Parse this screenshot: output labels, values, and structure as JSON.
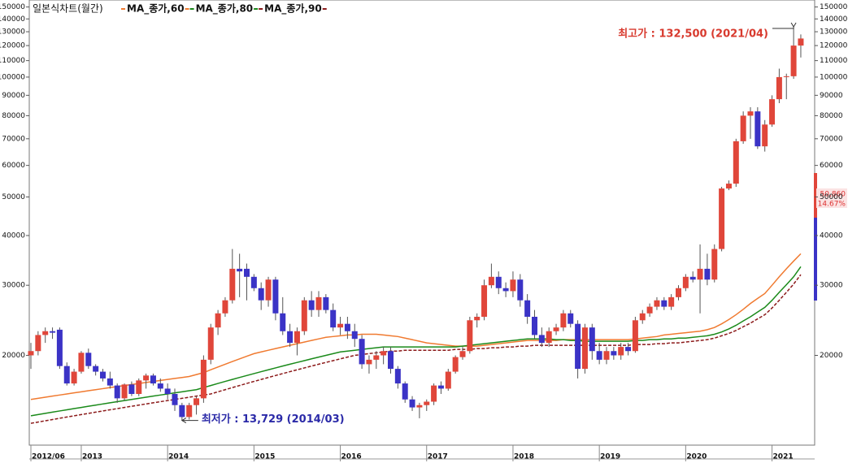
{
  "chart_data": {
    "type": "candlestick",
    "title": "일본식차트(월간)",
    "log_scale": true,
    "grid": false,
    "up_color": "#e0463a",
    "down_color": "#3b33c6",
    "ylim": [
      11900,
      154000
    ],
    "yticks": [
      20000,
      30000,
      40000,
      50000,
      60000,
      70000,
      80000,
      90000,
      100000,
      110000,
      120000,
      130000,
      140000,
      150000
    ],
    "categories": [
      "2012/06",
      null,
      null,
      null,
      null,
      null,
      null,
      "2013",
      null,
      null,
      null,
      null,
      null,
      null,
      null,
      null,
      null,
      null,
      null,
      "2014",
      null,
      null,
      null,
      null,
      null,
      null,
      null,
      null,
      null,
      null,
      null,
      "2015",
      null,
      null,
      null,
      null,
      null,
      null,
      null,
      null,
      null,
      null,
      null,
      "2016",
      null,
      null,
      null,
      null,
      null,
      null,
      null,
      null,
      null,
      null,
      null,
      "2017",
      null,
      null,
      null,
      null,
      null,
      null,
      null,
      null,
      null,
      null,
      null,
      "2018",
      null,
      null,
      null,
      null,
      null,
      null,
      null,
      null,
      null,
      null,
      null,
      "2019",
      null,
      null,
      null,
      null,
      null,
      null,
      null,
      null,
      null,
      null,
      null,
      "2020",
      null,
      null,
      null,
      null,
      null,
      null,
      null,
      null,
      null,
      null,
      null,
      "2021",
      null,
      null,
      null,
      null
    ],
    "ohlc": [
      [
        20000,
        21500,
        18500,
        20500
      ],
      [
        20500,
        23000,
        20000,
        22500
      ],
      [
        22500,
        23500,
        21500,
        23000
      ],
      [
        23000,
        23500,
        22000,
        22800
      ],
      [
        23200,
        23500,
        18500,
        18800
      ],
      [
        18800,
        19200,
        16800,
        17000
      ],
      [
        17000,
        18500,
        16800,
        18200
      ],
      [
        18200,
        20500,
        18000,
        20300
      ],
      [
        20300,
        20800,
        18500,
        18800
      ],
      [
        18800,
        19000,
        17800,
        18200
      ],
      [
        18200,
        18500,
        17200,
        17500
      ],
      [
        17500,
        18200,
        16500,
        16800
      ],
      [
        16800,
        17000,
        15200,
        15600
      ],
      [
        15600,
        17000,
        15400,
        16900
      ],
      [
        16900,
        17200,
        15800,
        16000
      ],
      [
        16000,
        17500,
        15800,
        17300
      ],
      [
        17300,
        18000,
        16500,
        17800
      ],
      [
        17800,
        18000,
        16800,
        17000
      ],
      [
        17000,
        17500,
        16200,
        16500
      ],
      [
        16500,
        17000,
        15500,
        16000
      ],
      [
        16000,
        16500,
        14500,
        15000
      ],
      [
        15000,
        15200,
        13729,
        14000
      ],
      [
        14000,
        15200,
        13800,
        15000
      ],
      [
        15000,
        15800,
        14200,
        15600
      ],
      [
        15600,
        20000,
        15200,
        19500
      ],
      [
        19500,
        24000,
        19000,
        23500
      ],
      [
        23500,
        26000,
        22500,
        25500
      ],
      [
        25500,
        28000,
        25000,
        27500
      ],
      [
        27500,
        37000,
        27000,
        33000
      ],
      [
        33000,
        36000,
        28000,
        32500
      ],
      [
        33000,
        34000,
        27500,
        31500
      ],
      [
        31500,
        32000,
        29000,
        29500
      ],
      [
        29500,
        30500,
        26000,
        27500
      ],
      [
        27500,
        31500,
        26500,
        31000
      ],
      [
        31000,
        31500,
        24500,
        25500
      ],
      [
        25500,
        28000,
        22500,
        23000
      ],
      [
        23000,
        24000,
        21000,
        21500
      ],
      [
        21500,
        23500,
        20000,
        23000
      ],
      [
        23000,
        28000,
        22500,
        27500
      ],
      [
        27500,
        29000,
        25000,
        26000
      ],
      [
        26000,
        29000,
        25000,
        28000
      ],
      [
        28000,
        28500,
        25500,
        26000
      ],
      [
        26000,
        27000,
        23000,
        23500
      ],
      [
        23500,
        25000,
        22500,
        24000
      ],
      [
        24000,
        25000,
        22000,
        23000
      ],
      [
        23000,
        24000,
        21000,
        22000
      ],
      [
        22000,
        22500,
        18500,
        19000
      ],
      [
        19000,
        20000,
        18000,
        19500
      ],
      [
        19500,
        20500,
        18500,
        20000
      ],
      [
        20000,
        21000,
        19000,
        20500
      ],
      [
        20500,
        21000,
        18000,
        18500
      ],
      [
        18500,
        18800,
        16500,
        17000
      ],
      [
        17000,
        17200,
        15200,
        15500
      ],
      [
        15500,
        15800,
        14500,
        14800
      ],
      [
        14800,
        15200,
        13900,
        15000
      ],
      [
        15000,
        15500,
        14500,
        15300
      ],
      [
        15300,
        17000,
        15000,
        16800
      ],
      [
        16800,
        17200,
        16000,
        16500
      ],
      [
        16500,
        18500,
        16300,
        18200
      ],
      [
        18200,
        20000,
        18000,
        19800
      ],
      [
        19800,
        21000,
        19500,
        20500
      ],
      [
        20500,
        25000,
        20200,
        24500
      ],
      [
        24500,
        25500,
        23500,
        25000
      ],
      [
        25000,
        31000,
        24500,
        30000
      ],
      [
        30000,
        34000,
        29500,
        31500
      ],
      [
        31500,
        32500,
        28500,
        29500
      ],
      [
        29500,
        30500,
        28000,
        29000
      ],
      [
        29000,
        32500,
        28000,
        31000
      ],
      [
        31000,
        32000,
        26500,
        27500
      ],
      [
        27500,
        28500,
        24000,
        25000
      ],
      [
        25000,
        26000,
        22000,
        22500
      ],
      [
        22500,
        23500,
        21000,
        21500
      ],
      [
        21500,
        23500,
        21000,
        23000
      ],
      [
        23000,
        24000,
        22500,
        23500
      ],
      [
        23500,
        26000,
        23000,
        25500
      ],
      [
        25500,
        26000,
        23500,
        24000
      ],
      [
        24000,
        24500,
        17500,
        18500
      ],
      [
        18500,
        24000,
        18000,
        23500
      ],
      [
        23500,
        24000,
        19500,
        20500
      ],
      [
        20500,
        21500,
        19000,
        19500
      ],
      [
        19500,
        21000,
        19000,
        20500
      ],
      [
        20500,
        21000,
        19500,
        20000
      ],
      [
        20000,
        21500,
        19500,
        21000
      ],
      [
        21000,
        21500,
        20000,
        20500
      ],
      [
        20500,
        25000,
        20300,
        24500
      ],
      [
        24500,
        26000,
        24000,
        25500
      ],
      [
        25500,
        27000,
        25000,
        26500
      ],
      [
        26500,
        28000,
        26000,
        27500
      ],
      [
        27500,
        28000,
        26000,
        26500
      ],
      [
        26500,
        28500,
        26000,
        28000
      ],
      [
        28000,
        30000,
        27500,
        29500
      ],
      [
        29500,
        32000,
        29000,
        31500
      ],
      [
        31500,
        32500,
        30500,
        31000
      ],
      [
        31000,
        38000,
        25500,
        33000
      ],
      [
        33000,
        36000,
        30000,
        31000
      ],
      [
        31000,
        38000,
        30500,
        37000
      ],
      [
        37000,
        53000,
        36500,
        52500
      ],
      [
        52500,
        55000,
        52000,
        54000
      ],
      [
        54000,
        70000,
        53000,
        69000
      ],
      [
        69000,
        82000,
        68000,
        80000
      ],
      [
        80000,
        84000,
        70000,
        82000
      ],
      [
        82000,
        84000,
        66000,
        67000
      ],
      [
        67000,
        78000,
        65000,
        76000
      ],
      [
        76000,
        90000,
        75000,
        88000
      ],
      [
        88000,
        105000,
        86000,
        100000
      ],
      [
        100000,
        102000,
        88000,
        100500
      ],
      [
        100500,
        132500,
        99000,
        120000
      ],
      [
        120000,
        128000,
        112000,
        125000
      ]
    ],
    "series": [
      {
        "name": "MA_종가,60",
        "color": "#f07a30",
        "dashed": false,
        "values": [
          15500,
          15600,
          15700,
          15800,
          15900,
          16000,
          16100,
          16200,
          16300,
          16400,
          16500,
          16600,
          16700,
          16800,
          16900,
          17000,
          17100,
          17200,
          17300,
          17400,
          17500,
          17600,
          17700,
          17900,
          18100,
          18400,
          18700,
          19000,
          19300,
          19600,
          19900,
          20200,
          20400,
          20600,
          20800,
          21000,
          21200,
          21400,
          21600,
          21800,
          22000,
          22200,
          22300,
          22400,
          22500,
          22500,
          22600,
          22600,
          22600,
          22500,
          22400,
          22300,
          22100,
          21900,
          21700,
          21500,
          21400,
          21300,
          21200,
          21100,
          21100,
          21100,
          21100,
          21200,
          21300,
          21400,
          21500,
          21600,
          21700,
          21800,
          21800,
          21800,
          21800,
          21800,
          21900,
          21900,
          21900,
          21900,
          21900,
          21900,
          21900,
          21900,
          21900,
          21900,
          22000,
          22100,
          22200,
          22300,
          22500,
          22600,
          22700,
          22800,
          22900,
          23000,
          23200,
          23500,
          24000,
          24600,
          25300,
          26100,
          27000,
          27800,
          28600,
          30000,
          31500,
          33000,
          34500,
          36000
        ]
      },
      {
        "name": "MA_종가,80",
        "color": "#1a8a1a",
        "dashed": false,
        "values": [
          14100,
          14200,
          14300,
          14400,
          14500,
          14600,
          14700,
          14800,
          14900,
          15000,
          15100,
          15200,
          15300,
          15400,
          15500,
          15600,
          15700,
          15800,
          15900,
          16000,
          16100,
          16200,
          16300,
          16400,
          16600,
          16800,
          17000,
          17200,
          17400,
          17600,
          17800,
          18000,
          18200,
          18400,
          18600,
          18800,
          19000,
          19200,
          19400,
          19600,
          19800,
          20000,
          20200,
          20400,
          20500,
          20600,
          20700,
          20800,
          20900,
          21000,
          21000,
          21000,
          21000,
          21000,
          21000,
          21000,
          21000,
          21000,
          21000,
          21000,
          21100,
          21200,
          21300,
          21400,
          21500,
          21600,
          21700,
          21800,
          21900,
          22000,
          22000,
          22000,
          22000,
          21900,
          21900,
          21800,
          21800,
          21700,
          21700,
          21700,
          21700,
          21700,
          21700,
          21700,
          21800,
          21800,
          21900,
          21900,
          22000,
          22000,
          22100,
          22100,
          22200,
          22300,
          22400,
          22600,
          22900,
          23300,
          23800,
          24400,
          25000,
          25700,
          26400,
          27500,
          28800,
          30100,
          31500,
          33400
        ]
      },
      {
        "name": "MA_종가,90",
        "color": "#8b1a1a",
        "dashed": true,
        "values": [
          13500,
          13600,
          13700,
          13800,
          13900,
          14000,
          14100,
          14200,
          14300,
          14400,
          14500,
          14600,
          14700,
          14800,
          14900,
          15000,
          15100,
          15200,
          15300,
          15400,
          15500,
          15600,
          15700,
          15800,
          15900,
          16000,
          16200,
          16400,
          16600,
          16800,
          17000,
          17200,
          17400,
          17600,
          17800,
          18000,
          18200,
          18400,
          18600,
          18800,
          19000,
          19200,
          19400,
          19600,
          19800,
          20000,
          20100,
          20200,
          20300,
          20400,
          20500,
          20500,
          20600,
          20600,
          20600,
          20600,
          20600,
          20600,
          20600,
          20700,
          20700,
          20700,
          20800,
          20800,
          20900,
          20900,
          21000,
          21000,
          21100,
          21100,
          21200,
          21200,
          21200,
          21200,
          21200,
          21200,
          21200,
          21200,
          21200,
          21200,
          21200,
          21200,
          21200,
          21200,
          21300,
          21300,
          21300,
          21400,
          21400,
          21500,
          21500,
          21600,
          21700,
          21800,
          21900,
          22100,
          22400,
          22700,
          23100,
          23600,
          24100,
          24700,
          25300,
          26300,
          27500,
          28800,
          30200,
          31900
        ]
      }
    ],
    "annotations": {
      "high": "최고가 : 132,500 (2021/04)",
      "low": "최저가 : 13,729 (2014/03)"
    },
    "price_tag": "50,860",
    "change_tag": "14.67%"
  }
}
